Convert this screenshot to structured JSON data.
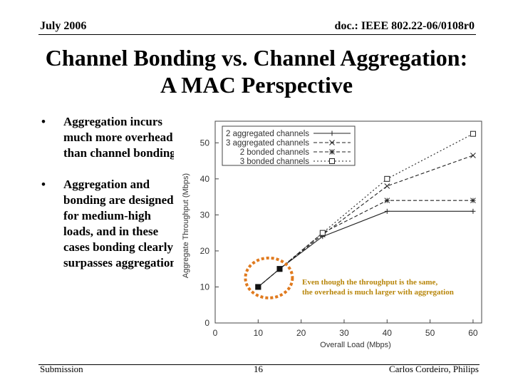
{
  "header": {
    "date": "July 2006",
    "doc_id": "doc.: IEEE 802.22-06/0108r0"
  },
  "slide": {
    "title_line1": "Channel Bonding vs. Channel Aggregation:",
    "title_line2": "A MAC Perspective",
    "bullet_symbol": "•",
    "bullets": [
      "Aggregation incurs much more overhead than channel bonding",
      "Aggregation and bonding are designed for medium-high loads, and in these cases bonding clearly surpasses aggregation"
    ]
  },
  "footer": {
    "left": "Submission",
    "page": "16",
    "right": "Carlos Cordeiro, Philips"
  },
  "colors": {
    "annotation": "#b8860b",
    "highlight": "#e07a1e",
    "series": "#222222"
  },
  "chart_data": {
    "type": "line",
    "xlabel": "Overall Load (Mbps)",
    "ylabel": "Aggregate Throughput (Mbps)",
    "x_ticks": [
      0,
      10,
      20,
      30,
      40,
      50,
      60
    ],
    "y_ticks": [
      0,
      10,
      20,
      30,
      40,
      50
    ],
    "xlim": [
      0,
      62
    ],
    "ylim": [
      0,
      56
    ],
    "grid": false,
    "legend_position": "top-left",
    "x": [
      10,
      15,
      25,
      40,
      60
    ],
    "series": [
      {
        "name": "2 aggregated channels",
        "marker": "plus",
        "dash": "solid",
        "values": [
          10,
          15,
          24,
          31,
          31
        ]
      },
      {
        "name": "3 aggregated channels",
        "marker": "x",
        "dash": "dashed",
        "values": [
          10,
          15,
          24.5,
          38,
          46.5
        ]
      },
      {
        "name": "2 bonded channels",
        "marker": "star",
        "dash": "dashed",
        "values": [
          10,
          15,
          25,
          34,
          34
        ]
      },
      {
        "name": "3 bonded channels",
        "marker": "square",
        "dash": "dotted",
        "values": [
          10,
          15,
          25,
          40,
          52.5
        ]
      }
    ],
    "highlighted_points": [
      {
        "x": 10,
        "y": 10
      },
      {
        "x": 15,
        "y": 15
      }
    ],
    "annotation": "Even though the throughput is the same, the overhead is much larger with aggregation"
  }
}
